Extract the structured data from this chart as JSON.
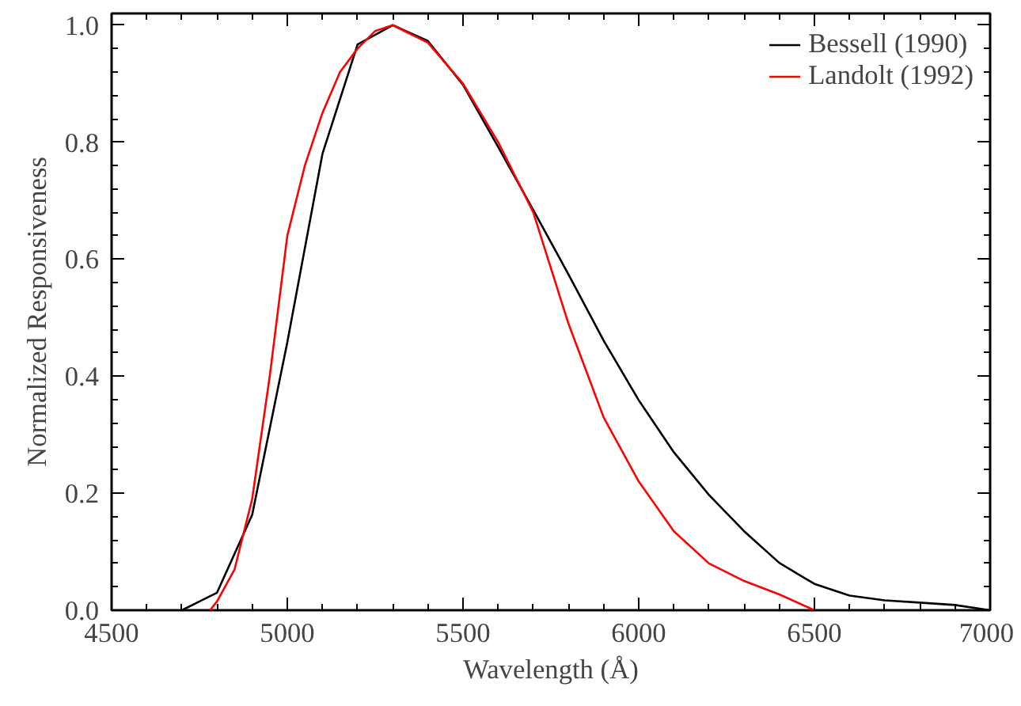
{
  "chart_data": {
    "type": "line",
    "xlabel": "Wavelength (Å)",
    "ylabel": "Normalized Responsiveness",
    "xlim": [
      4500,
      7000
    ],
    "ylim": [
      0,
      1.02
    ],
    "xticks": [
      4500,
      5000,
      5500,
      6000,
      6500,
      7000
    ],
    "yticks": [
      {
        "value": 0,
        "label": "0.0"
      },
      {
        "value": 0.2,
        "label": "0.2"
      },
      {
        "value": 0.4,
        "label": "0.4"
      },
      {
        "value": 0.6,
        "label": "0.6"
      },
      {
        "value": 0.8,
        "label": "0.8"
      },
      {
        "value": 1.0,
        "label": "1.0"
      }
    ],
    "grid": false,
    "legend": "top right",
    "line_style": "solid",
    "marker": "none",
    "series": [
      {
        "name": "Bessell (1990)",
        "color": "#000000",
        "x": [
          4700,
          4800,
          4900,
          5000,
          5100,
          5200,
          5300,
          5400,
          5500,
          5600,
          5700,
          5800,
          5900,
          6000,
          6100,
          6200,
          6300,
          6400,
          6500,
          6600,
          6700,
          6800,
          6900,
          7000
        ],
        "values": [
          0.0,
          0.03,
          0.163,
          0.458,
          0.78,
          0.967,
          1.0,
          0.973,
          0.898,
          0.792,
          0.684,
          0.574,
          0.461,
          0.359,
          0.27,
          0.197,
          0.135,
          0.081,
          0.045,
          0.025,
          0.017,
          0.013,
          0.009,
          0.0
        ]
      },
      {
        "name": "Landolt (1992)",
        "color": "#ff0000",
        "x": [
          4780,
          4800,
          4850,
          4900,
          4950,
          5000,
          5050,
          5100,
          5150,
          5200,
          5250,
          5300,
          5400,
          5500,
          5600,
          5700,
          5800,
          5900,
          6000,
          6100,
          6200,
          6300,
          6400,
          6500
        ],
        "values": [
          0.0,
          0.015,
          0.07,
          0.19,
          0.4,
          0.64,
          0.76,
          0.85,
          0.92,
          0.96,
          0.99,
          1.0,
          0.97,
          0.9,
          0.8,
          0.68,
          0.49,
          0.33,
          0.22,
          0.135,
          0.08,
          0.05,
          0.027,
          0.0
        ]
      }
    ]
  }
}
